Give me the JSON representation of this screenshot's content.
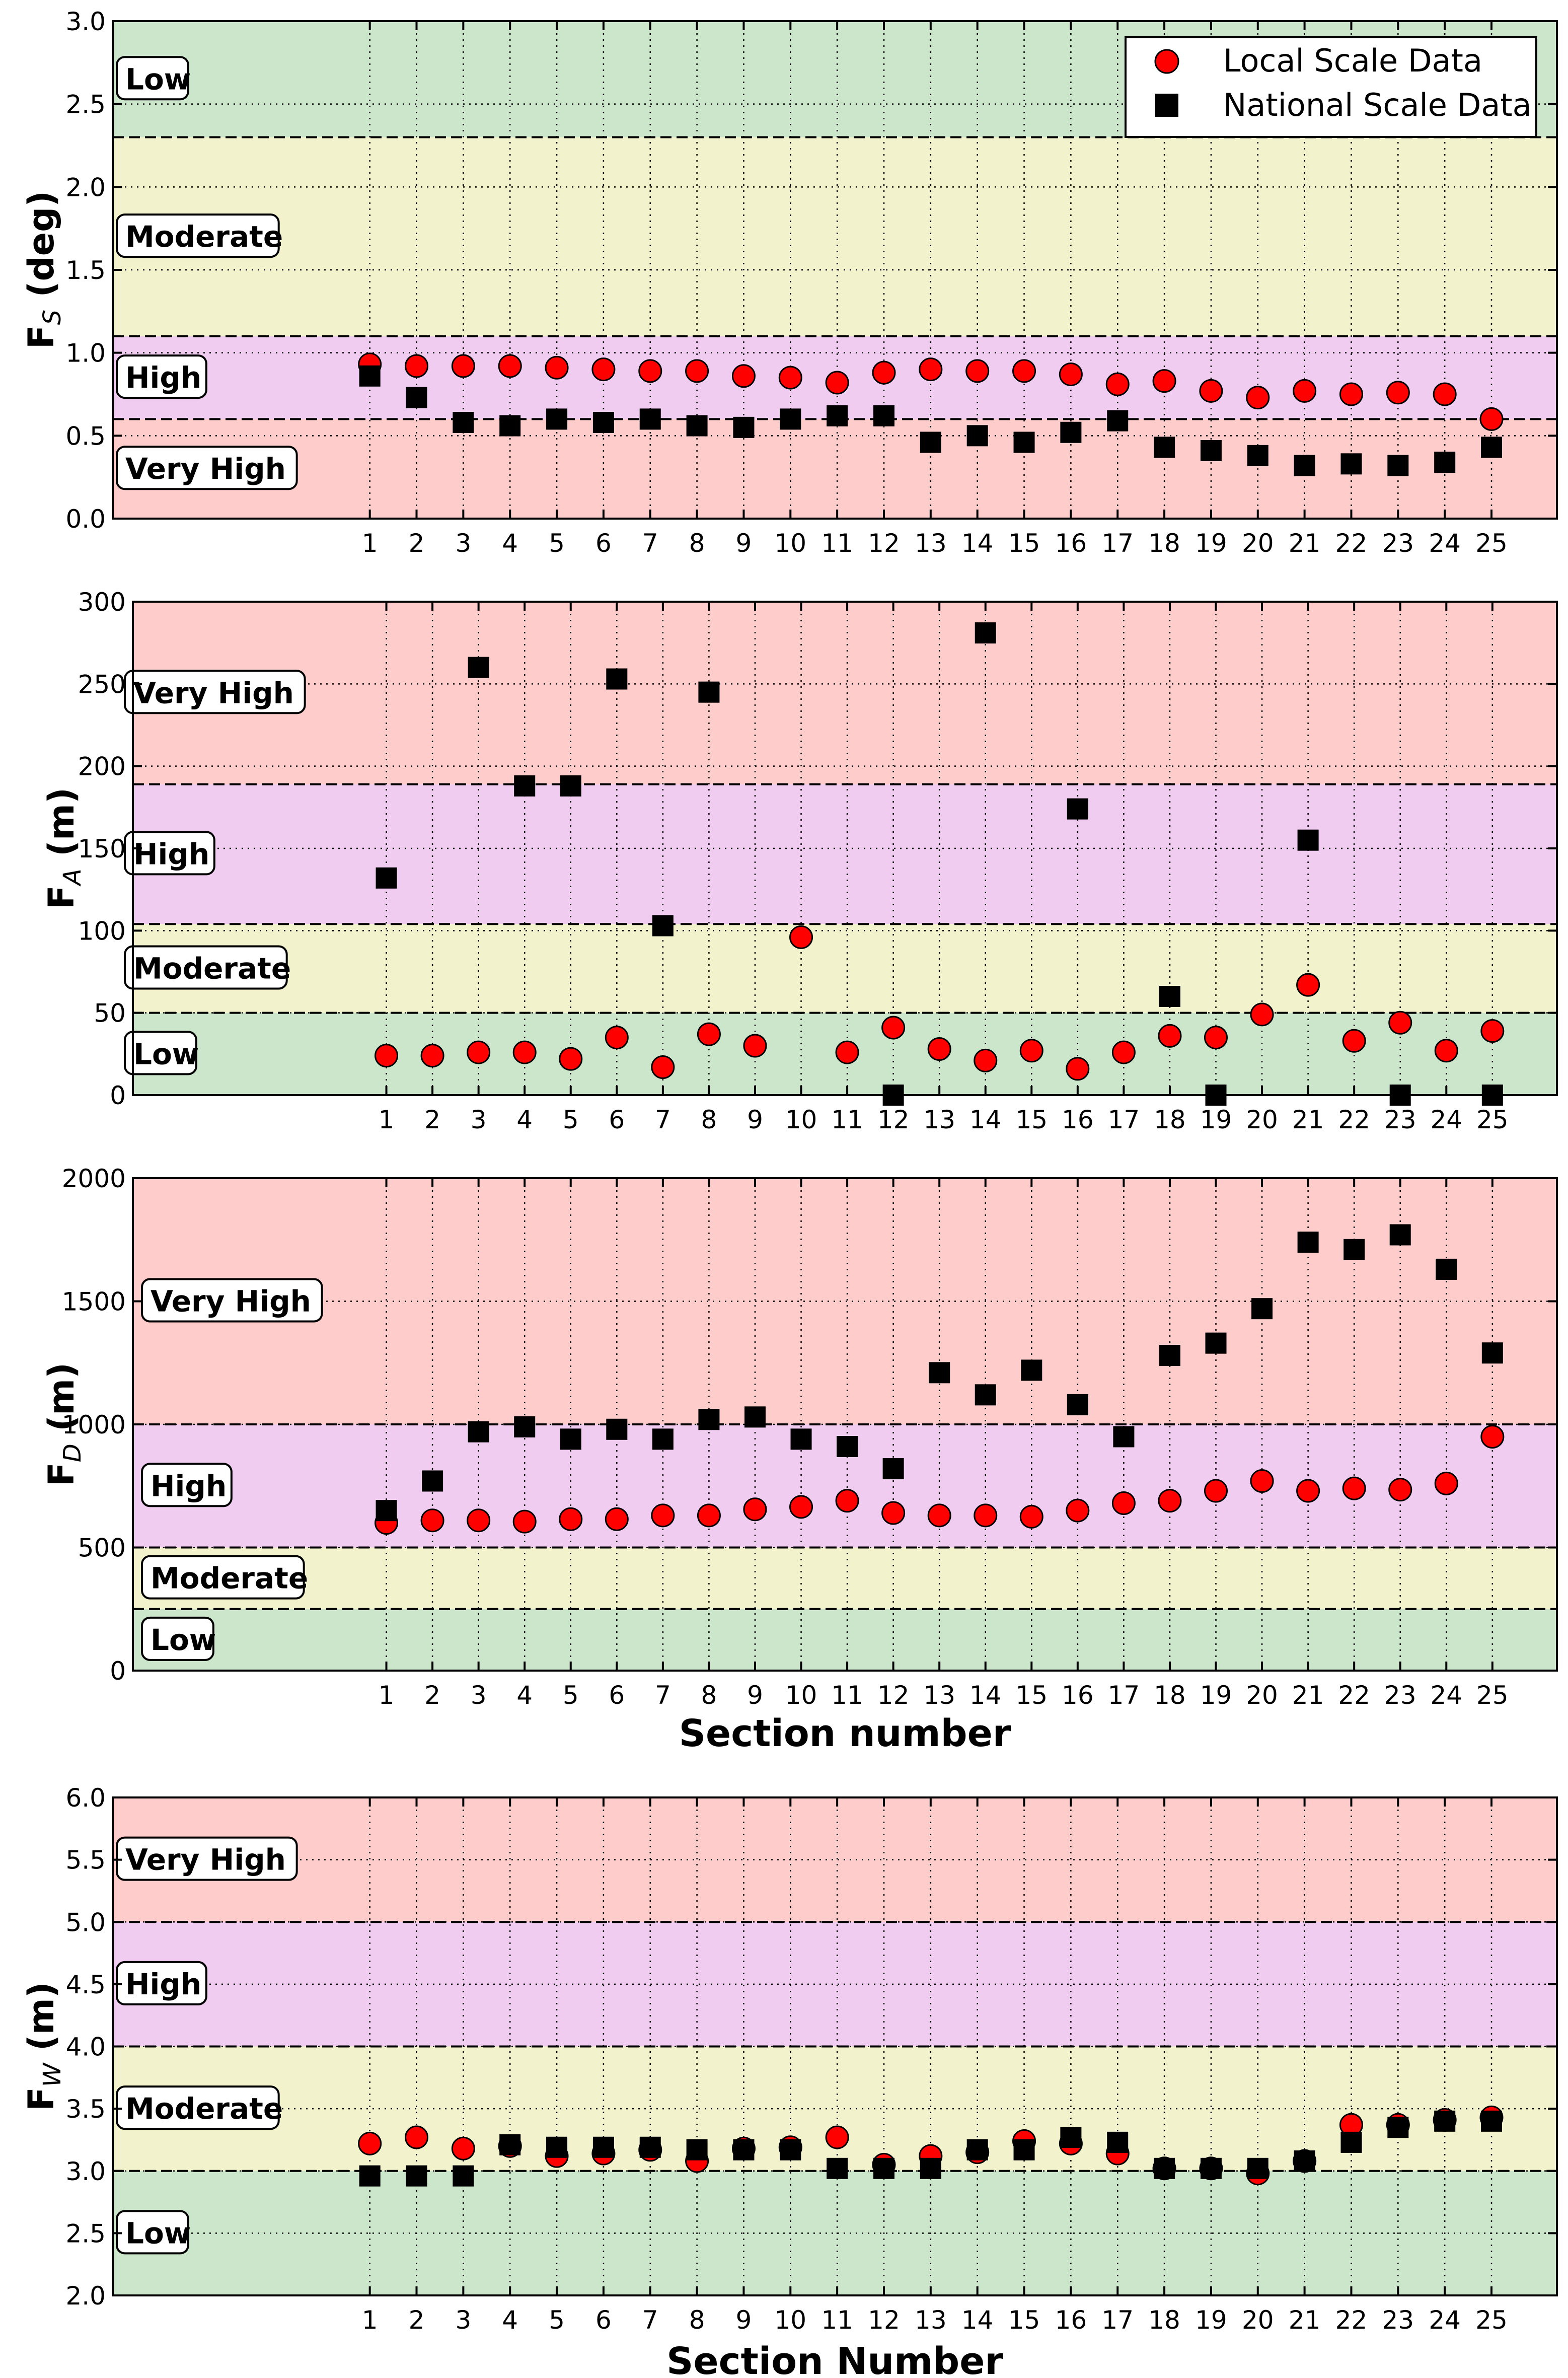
{
  "colors": {
    "very_high": "#ffcccc",
    "high": "#f0ccf0",
    "moderate": "#f2f2cc",
    "low": "#cce6cc",
    "local_marker": "#ff0000",
    "national_marker": "#000000"
  },
  "legend": {
    "local_label": "Local Scale Data",
    "national_label": "National Scale Data"
  },
  "chart_data": [
    {
      "type": "scatter",
      "id": "fs",
      "ylabel": "F_S (deg)",
      "ylabel_main": "F",
      "ylabel_sub": "S",
      "ylabel_unit": "(deg)",
      "xlabel": "",
      "ylim": [
        0,
        3.0
      ],
      "yticks": [
        "0.0",
        "0.5",
        "1.0",
        "1.5",
        "2.0",
        "2.5",
        "3.0"
      ],
      "x": [
        1,
        2,
        3,
        4,
        5,
        6,
        7,
        8,
        9,
        10,
        11,
        12,
        13,
        14,
        15,
        16,
        17,
        18,
        19,
        20,
        21,
        22,
        23,
        24,
        25
      ],
      "bands": [
        {
          "label": "Very High",
          "from": 0,
          "to": 0.6,
          "color_key": "very_high"
        },
        {
          "label": "High",
          "from": 0.6,
          "to": 1.1,
          "color_key": "high"
        },
        {
          "label": "Moderate",
          "from": 1.1,
          "to": 2.3,
          "color_key": "moderate"
        },
        {
          "label": "Low",
          "from": 2.3,
          "to": 3.0,
          "color_key": "low"
        }
      ],
      "series": [
        {
          "name": "Local Scale Data",
          "marker": "circle",
          "values": [
            0.93,
            0.92,
            0.92,
            0.92,
            0.91,
            0.9,
            0.89,
            0.89,
            0.86,
            0.85,
            0.82,
            0.88,
            0.9,
            0.89,
            0.89,
            0.87,
            0.81,
            0.83,
            0.77,
            0.73,
            0.77,
            0.75,
            0.76,
            0.75,
            0.6
          ]
        },
        {
          "name": "National Scale Data",
          "marker": "square",
          "values": [
            0.86,
            0.73,
            0.58,
            0.56,
            0.6,
            0.58,
            0.6,
            0.56,
            0.55,
            0.6,
            0.62,
            0.62,
            0.46,
            0.5,
            0.46,
            0.52,
            0.59,
            0.43,
            0.41,
            0.38,
            0.32,
            0.33,
            0.32,
            0.34,
            0.43
          ]
        }
      ]
    },
    {
      "type": "scatter",
      "id": "fa",
      "ylabel": "F_A (m)",
      "ylabel_main": "F",
      "ylabel_sub": "A",
      "ylabel_unit": "(m)",
      "xlabel": "",
      "ylim": [
        0,
        300
      ],
      "yticks": [
        "0",
        "50",
        "100",
        "150",
        "200",
        "250",
        "300"
      ],
      "x": [
        1,
        2,
        3,
        4,
        5,
        6,
        7,
        8,
        9,
        10,
        11,
        12,
        13,
        14,
        15,
        16,
        17,
        18,
        19,
        20,
        21,
        22,
        23,
        24,
        25
      ],
      "bands": [
        {
          "label": "Low",
          "from": 0,
          "to": 50,
          "color_key": "low"
        },
        {
          "label": "Moderate",
          "from": 50,
          "to": 104,
          "color_key": "moderate"
        },
        {
          "label": "High",
          "from": 104,
          "to": 189,
          "color_key": "high"
        },
        {
          "label": "Very High",
          "from": 189,
          "to": 300,
          "color_key": "very_high"
        }
      ],
      "series": [
        {
          "name": "Local Scale Data",
          "marker": "circle",
          "values": [
            24,
            24,
            26,
            26,
            22,
            35,
            17,
            37,
            30,
            96,
            26,
            41,
            28,
            21,
            27,
            16,
            26,
            36,
            35,
            49,
            67,
            33,
            44,
            27,
            39
          ]
        },
        {
          "name": "National Scale Data",
          "marker": "square",
          "values": [
            132,
            null,
            260,
            188,
            188,
            253,
            103,
            245,
            null,
            null,
            null,
            0,
            null,
            281,
            null,
            174,
            null,
            60,
            0,
            null,
            155,
            null,
            0,
            null,
            0
          ]
        }
      ]
    },
    {
      "type": "scatter",
      "id": "fd",
      "ylabel": "F_D (m)",
      "ylabel_main": "F",
      "ylabel_sub": "D",
      "ylabel_unit": "(m)",
      "xlabel": "Section number",
      "ylim": [
        0,
        2000
      ],
      "yticks": [
        "0",
        "500",
        "1000",
        "1500",
        "2000"
      ],
      "x": [
        1,
        2,
        3,
        4,
        5,
        6,
        7,
        8,
        9,
        10,
        11,
        12,
        13,
        14,
        15,
        16,
        17,
        18,
        19,
        20,
        21,
        22,
        23,
        24,
        25
      ],
      "bands": [
        {
          "label": "Low",
          "from": 0,
          "to": 250,
          "color_key": "low"
        },
        {
          "label": "Moderate",
          "from": 250,
          "to": 500,
          "color_key": "moderate"
        },
        {
          "label": "High",
          "from": 500,
          "to": 1000,
          "color_key": "high"
        },
        {
          "label": "Very High",
          "from": 1000,
          "to": 2000,
          "color_key": "very_high"
        }
      ],
      "series": [
        {
          "name": "Local Scale Data",
          "marker": "circle",
          "values": [
            600,
            610,
            610,
            605,
            615,
            615,
            630,
            630,
            655,
            665,
            690,
            640,
            630,
            630,
            625,
            650,
            680,
            690,
            730,
            770,
            730,
            740,
            735,
            760,
            950
          ]
        },
        {
          "name": "National Scale Data",
          "marker": "square",
          "values": [
            650,
            770,
            970,
            990,
            940,
            980,
            940,
            1020,
            1030,
            940,
            910,
            820,
            1210,
            1120,
            1220,
            1080,
            950,
            1280,
            1330,
            1470,
            1740,
            1710,
            1770,
            1630,
            1290
          ]
        }
      ]
    },
    {
      "type": "scatter",
      "id": "fw",
      "ylabel": "F_W (m)",
      "ylabel_main": "F",
      "ylabel_sub": "W",
      "ylabel_unit": "(m)",
      "xlabel": "Section Number",
      "ylim": [
        2.0,
        6.0
      ],
      "yticks": [
        "2.0",
        "2.5",
        "3.0",
        "3.5",
        "4.0",
        "4.5",
        "5.0",
        "5.5",
        "6.0"
      ],
      "x": [
        1,
        2,
        3,
        4,
        5,
        6,
        7,
        8,
        9,
        10,
        11,
        12,
        13,
        14,
        15,
        16,
        17,
        18,
        19,
        20,
        21,
        22,
        23,
        24,
        25
      ],
      "bands": [
        {
          "label": "Low",
          "from": 2.0,
          "to": 3.0,
          "color_key": "low"
        },
        {
          "label": "Moderate",
          "from": 3.0,
          "to": 4.0,
          "color_key": "moderate"
        },
        {
          "label": "High",
          "from": 4.0,
          "to": 5.0,
          "color_key": "high"
        },
        {
          "label": "Very High",
          "from": 5.0,
          "to": 6.0,
          "color_key": "very_high"
        }
      ],
      "series": [
        {
          "name": "Local Scale Data",
          "marker": "circle",
          "values": [
            3.22,
            3.27,
            3.18,
            3.2,
            3.12,
            3.14,
            3.17,
            3.08,
            3.18,
            3.19,
            3.27,
            3.05,
            3.12,
            3.15,
            3.24,
            3.22,
            3.14,
            3.02,
            3.02,
            2.98,
            3.08,
            3.37,
            3.37,
            3.41,
            3.43
          ]
        },
        {
          "name": "National Scale Data",
          "marker": "square",
          "values": [
            2.96,
            2.96,
            2.96,
            3.21,
            3.19,
            3.19,
            3.19,
            3.17,
            3.17,
            3.17,
            3.02,
            3.02,
            3.02,
            3.17,
            3.17,
            3.27,
            3.23,
            3.02,
            3.02,
            3.02,
            3.08,
            3.23,
            3.35,
            3.4,
            3.4
          ]
        }
      ]
    }
  ]
}
